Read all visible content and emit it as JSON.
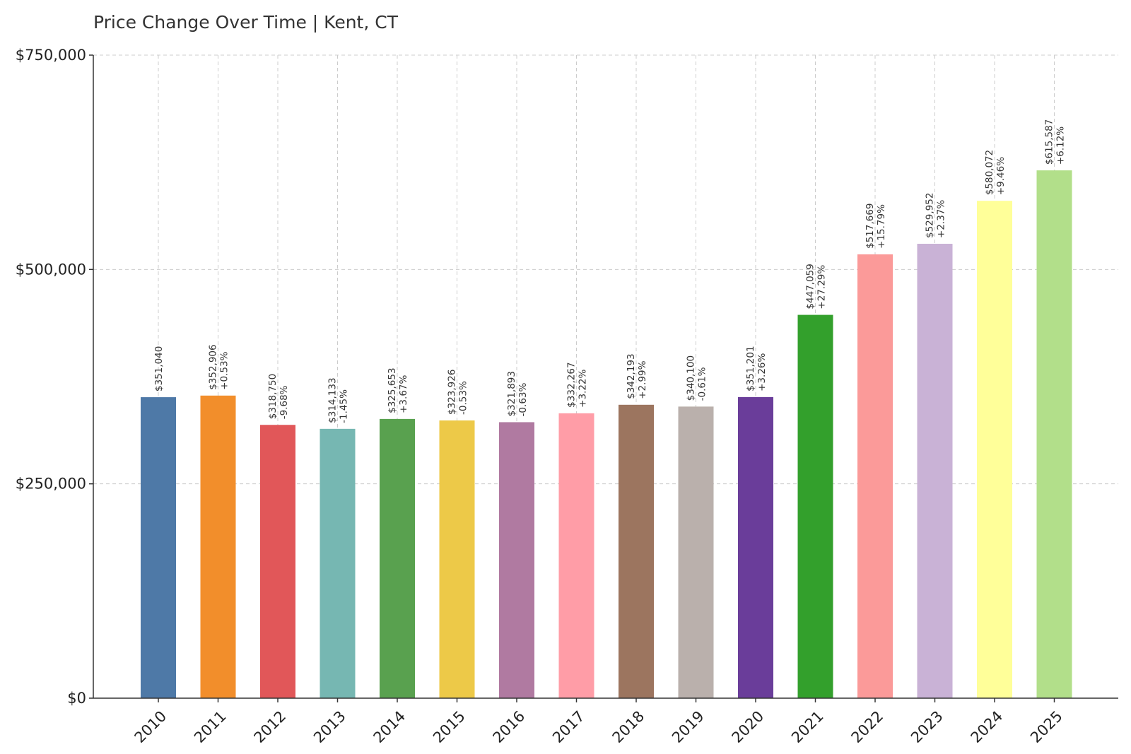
{
  "chart_data": {
    "type": "bar",
    "title": "Price Change Over Time | Kent, CT",
    "xlabel": "",
    "ylabel": "",
    "ylim": [
      0,
      750000
    ],
    "yticks": [
      0,
      250000,
      500000,
      750000
    ],
    "ytick_labels": [
      "$0",
      "$250,000",
      "$500,000",
      "$750,000"
    ],
    "grid": true,
    "categories": [
      "2010",
      "2011",
      "2012",
      "2013",
      "2014",
      "2015",
      "2016",
      "2017",
      "2018",
      "2019",
      "2020",
      "2021",
      "2022",
      "2023",
      "2024",
      "2025"
    ],
    "values": [
      351040,
      352906,
      318750,
      314133,
      325653,
      323926,
      321893,
      332267,
      342193,
      340100,
      351201,
      447059,
      517669,
      529952,
      580072,
      615587
    ],
    "value_labels": [
      "$351,040",
      "$352,906",
      "$318,750",
      "$314,133",
      "$325,653",
      "$323,926",
      "$321,893",
      "$332,267",
      "$342,193",
      "$340,100",
      "$351,201",
      "$447,059",
      "$517,669",
      "$529,952",
      "$580,072",
      "$615,587"
    ],
    "change_labels": [
      "",
      "+0.53%",
      "-9.68%",
      "-1.45%",
      "+3.67%",
      "-0.53%",
      "-0.63%",
      "+3.22%",
      "+2.99%",
      "-0.61%",
      "+3.26%",
      "+27.29%",
      "+15.79%",
      "+2.37%",
      "+9.46%",
      "+6.12%"
    ],
    "colors": [
      "#4e79a7",
      "#f28e2b",
      "#e15759",
      "#76b7b2",
      "#59a14f",
      "#edc948",
      "#b07aa1",
      "#ff9da7",
      "#9c755f",
      "#bab0ac",
      "#6a3d9a",
      "#33a02c",
      "#fb9a99",
      "#c9b2d6",
      "#ffff99",
      "#b2df8a"
    ]
  }
}
